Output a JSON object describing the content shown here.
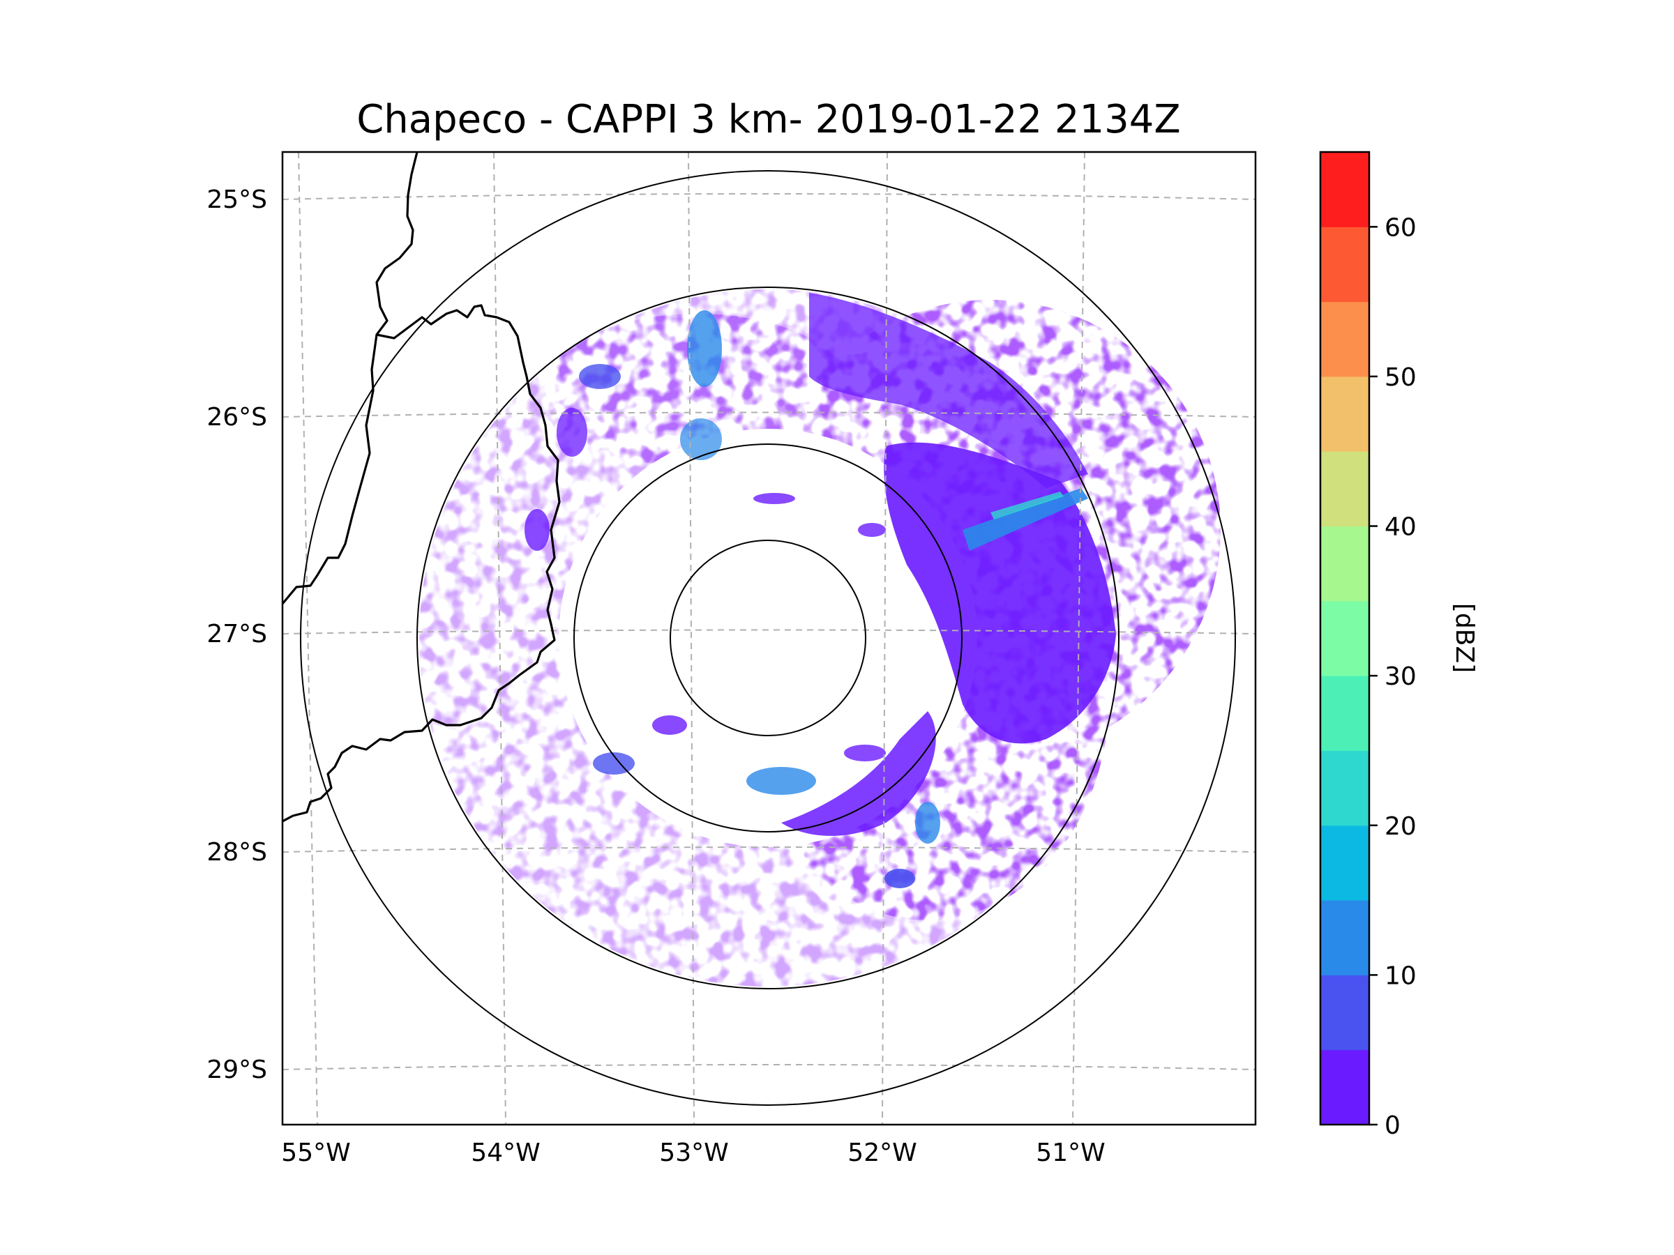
{
  "chart_data": {
    "type": "heatmap",
    "subtype": "radar-reflectivity-map",
    "title": "Chapeco - CAPPI 3 km- 2019-01-22 2134Z",
    "xlabel": "",
    "ylabel": "",
    "x_ticks": [
      "55°W",
      "54°W",
      "53°W",
      "52°W",
      "51°W"
    ],
    "y_ticks": [
      "25°S",
      "26°S",
      "27°S",
      "28°S",
      "29°S"
    ],
    "lon_values": [
      -55,
      -54,
      -53,
      -52,
      -51
    ],
    "lat_values": [
      -25,
      -26,
      -27,
      -28,
      -29
    ],
    "radar_site": {
      "lon": -52.6,
      "lat": -27.03
    },
    "range_rings_count": 4,
    "colorbar": {
      "label": "[dBZ]",
      "min": 0,
      "max": 65,
      "step": 5,
      "ticks": [
        0,
        10,
        20,
        30,
        40,
        50,
        60
      ],
      "tick_labels": [
        "0",
        "10",
        "20",
        "30",
        "40",
        "50",
        "60"
      ],
      "colors": [
        "#6a1bff",
        "#4a52f0",
        "#2a8aea",
        "#0cb9e2",
        "#2ed8cf",
        "#4cf0b6",
        "#7cfda5",
        "#a6f78e",
        "#cfe07c",
        "#f2c06a",
        "#fd8f4c",
        "#fd5a33",
        "#ff1e1e"
      ]
    },
    "echo_summary": "weak echoes 0-25 dBZ, densest east and northeast of radar"
  }
}
